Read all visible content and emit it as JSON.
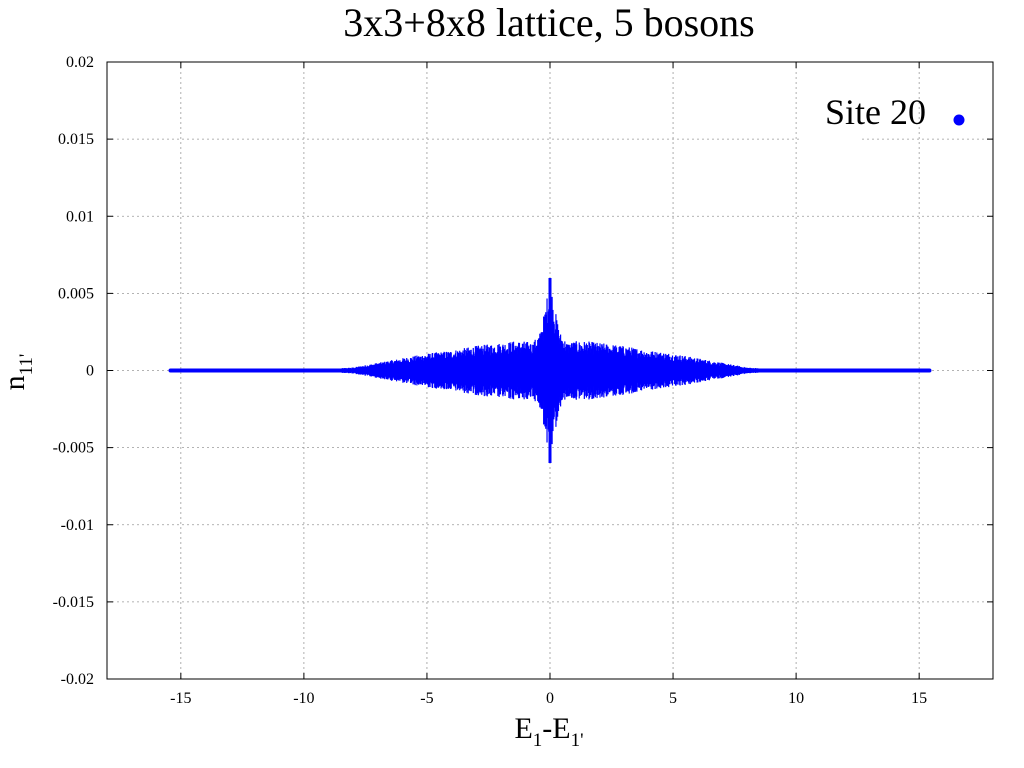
{
  "chart_data": {
    "type": "scatter",
    "title": "3x3+8x8 lattice, 5 bosons",
    "xlabel": {
      "base": "E",
      "sub1": "1",
      "minus": "-E",
      "sub2": "1'"
    },
    "ylabel": {
      "base": "n",
      "sub": "11'"
    },
    "xlim": [
      -18,
      18
    ],
    "ylim": [
      -0.02,
      0.02
    ],
    "xticks": [
      -15,
      -10,
      -5,
      0,
      5,
      10,
      15
    ],
    "xtick_labels": [
      "-15",
      "-10",
      "-5",
      "0",
      "5",
      "10",
      "15"
    ],
    "yticks": [
      -0.02,
      -0.015,
      -0.01,
      -0.005,
      0,
      0.005,
      0.01,
      0.015,
      0.02
    ],
    "ytick_labels": [
      "-0.02",
      "-0.015",
      "-0.01",
      "-0.005",
      "0",
      "0.005",
      "0.01",
      "0.015",
      "0.02"
    ],
    "grid": true,
    "legend_position": "top-right",
    "series": [
      {
        "name": "Site 20",
        "color": "#0000ff",
        "marker": "filled-circle",
        "x_range": [
          -15.5,
          15.5
        ],
        "envelope": {
          "x": [
            -15.5,
            -12,
            -9,
            -8,
            -7,
            -6,
            -5,
            -4,
            -3,
            -2,
            -1.5,
            -1,
            -0.7,
            -0.4,
            -0.2,
            0,
            0.2,
            0.4,
            0.7,
            1,
            1.5,
            2,
            3,
            4,
            5,
            6,
            7,
            8,
            9,
            12,
            15.5
          ],
          "y": [
            0.0001,
            0.0001,
            0.0001,
            0.0002,
            0.0005,
            0.0008,
            0.0011,
            0.0013,
            0.0016,
            0.0018,
            0.0019,
            0.0019,
            0.0018,
            0.0025,
            0.004,
            0.006,
            0.004,
            0.0025,
            0.0018,
            0.0019,
            0.0019,
            0.0018,
            0.0016,
            0.0013,
            0.0011,
            0.0008,
            0.0005,
            0.0002,
            0.0001,
            0.0001,
            0.0001
          ]
        }
      }
    ]
  }
}
